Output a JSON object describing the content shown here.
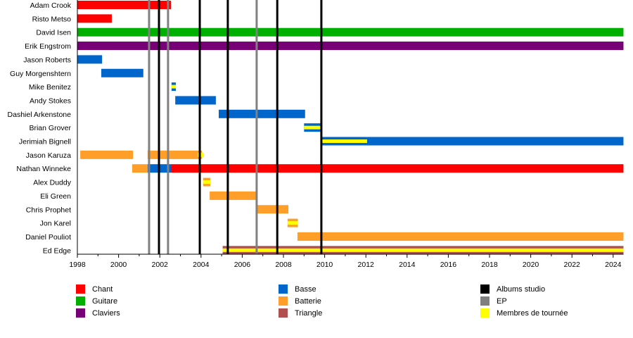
{
  "chart_data": {
    "type": "timeline",
    "title": "",
    "x_range": [
      1998,
      2024.5
    ],
    "x_ticks": [
      1998,
      2000,
      2002,
      2004,
      2006,
      2008,
      2010,
      2012,
      2014,
      2016,
      2018,
      2020,
      2022,
      2024
    ],
    "colors": {
      "chant": "#ff0000",
      "guitare": "#00b000",
      "claviers": "#770077",
      "basse": "#0066cc",
      "batterie": "#ff9f2a",
      "triangle": "#b05050",
      "album": "#000000",
      "ep": "#808080",
      "touring": "#ffff00"
    },
    "members": [
      {
        "name": "Adam Crook",
        "bars": [
          {
            "role": "chant",
            "start": 1998,
            "end": 2002.54
          }
        ]
      },
      {
        "name": "Risto Metso",
        "bars": [
          {
            "role": "chant",
            "start": 1998,
            "end": 1999.67
          }
        ]
      },
      {
        "name": "David Isen",
        "bars": [
          {
            "role": "guitare",
            "start": 1998,
            "end": 2024.5
          }
        ]
      },
      {
        "name": "Erik Engstrom",
        "bars": [
          {
            "role": "claviers",
            "start": 1998,
            "end": 2024.5
          }
        ]
      },
      {
        "name": "Jason Roberts",
        "bars": [
          {
            "role": "basse",
            "start": 1998,
            "end": 1999.2
          }
        ]
      },
      {
        "name": "Guy Morgenshtern",
        "bars": [
          {
            "role": "basse",
            "start": 1999.16,
            "end": 2001.2
          }
        ]
      },
      {
        "name": "Mike Benitez",
        "bars": [
          {
            "role": "basse",
            "start": 2002.57,
            "end": 2002.78,
            "touring": true
          }
        ]
      },
      {
        "name": "Andy Stokes",
        "bars": [
          {
            "role": "basse",
            "start": 2002.75,
            "end": 2004.72
          }
        ]
      },
      {
        "name": "Dashiel Arkenstone",
        "bars": [
          {
            "role": "basse",
            "start": 2004.86,
            "end": 2009.05
          }
        ]
      },
      {
        "name": "Brian Grover",
        "bars": [
          {
            "role": "basse",
            "start": 2009.0,
            "end": 2009.8,
            "touring": true
          }
        ]
      },
      {
        "name": "Jerimiah Bignell",
        "bars": [
          {
            "role": "basse",
            "start": 2009.8,
            "end": 2012.06,
            "touring": true
          },
          {
            "role": "basse",
            "start": 2012.06,
            "end": 2024.5
          }
        ]
      },
      {
        "name": "Jason Karuza",
        "bars": [
          {
            "role": "batterie",
            "start": 1998.14,
            "end": 2000.7
          },
          {
            "role": "batterie",
            "start": 2001.41,
            "end": 2004.04
          },
          {
            "role": "touring",
            "start": 2003.84,
            "end": 2004.14,
            "touring": true
          }
        ]
      },
      {
        "name": "Nathan Winneke",
        "bars": [
          {
            "role": "batterie",
            "start": 2000.66,
            "end": 2001.41
          },
          {
            "role": "basse",
            "start": 2001.41,
            "end": 2002.54
          },
          {
            "role": "chant",
            "start": 2002.54,
            "end": 2024.5
          }
        ]
      },
      {
        "name": "Alex Duddy",
        "bars": [
          {
            "role": "batterie",
            "start": 2004.1,
            "end": 2004.45,
            "touring": true
          }
        ]
      },
      {
        "name": "Eli Green",
        "bars": [
          {
            "role": "batterie",
            "start": 2004.42,
            "end": 2006.74
          }
        ]
      },
      {
        "name": "Chris Prophet",
        "bars": [
          {
            "role": "batterie",
            "start": 2006.7,
            "end": 2008.24
          }
        ]
      },
      {
        "name": "Jon Karel",
        "bars": [
          {
            "role": "batterie",
            "start": 2008.2,
            "end": 2008.7,
            "touring": true
          }
        ]
      },
      {
        "name": "Daniel Pouliot",
        "bars": [
          {
            "role": "batterie",
            "start": 2008.68,
            "end": 2024.5
          }
        ]
      },
      {
        "name": "Ed Edge",
        "bars": [
          {
            "role": "triangle",
            "start": 2005.05,
            "end": 2024.5,
            "touring": true
          }
        ]
      }
    ],
    "releases": [
      {
        "type": "ep",
        "year": 2001.48
      },
      {
        "type": "album",
        "year": 2001.96
      },
      {
        "type": "ep",
        "year": 2002.4
      },
      {
        "type": "album",
        "year": 2003.94
      },
      {
        "type": "album",
        "year": 2005.3
      },
      {
        "type": "ep",
        "year": 2006.7
      },
      {
        "type": "album",
        "year": 2007.7
      },
      {
        "type": "album",
        "year": 2009.84
      }
    ],
    "legend": [
      [
        {
          "key": "chant",
          "label": "Chant"
        },
        {
          "key": "guitare",
          "label": "Guitare"
        },
        {
          "key": "claviers",
          "label": "Claviers"
        }
      ],
      [
        {
          "key": "basse",
          "label": "Basse"
        },
        {
          "key": "batterie",
          "label": "Batterie"
        },
        {
          "key": "triangle",
          "label": "Triangle"
        }
      ],
      [
        {
          "key": "album",
          "label": "Albums studio"
        },
        {
          "key": "ep",
          "label": "EP"
        },
        {
          "key": "touring",
          "label": "Membres de tournée"
        }
      ]
    ]
  }
}
